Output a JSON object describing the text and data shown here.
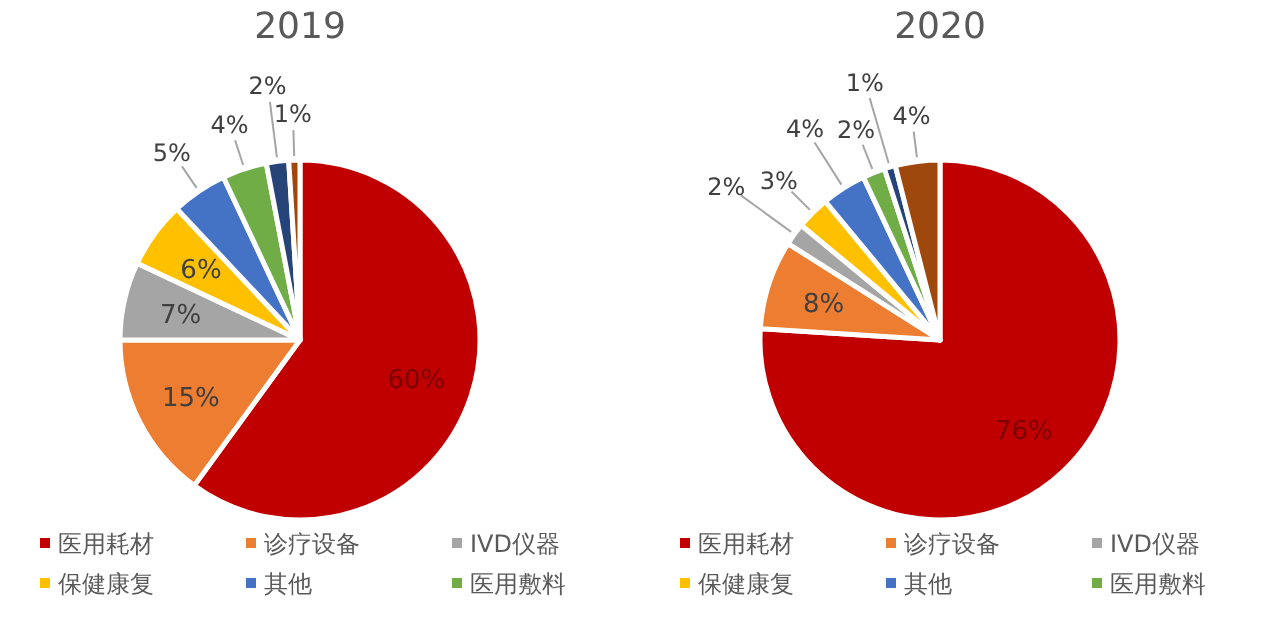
{
  "chart_data": [
    {
      "type": "pie",
      "title": "2019",
      "categories": [
        "医用耗材",
        "诊疗设备",
        "IVD仪器",
        "保健康复",
        "其他",
        "医用敷料",
        null,
        null
      ],
      "values": [
        60,
        15,
        7,
        6,
        5,
        4,
        2,
        1
      ],
      "value_labels": [
        "60%",
        "15%",
        "7%",
        "6%",
        "5%",
        "4%",
        "2%",
        "1%"
      ],
      "colors": [
        "#c00000",
        "#ed7d31",
        "#a5a5a5",
        "#ffc000",
        "#4472c4",
        "#70ad47",
        "#264478",
        "#9e480e"
      ],
      "legend": "bottom"
    },
    {
      "type": "pie",
      "title": "2020",
      "categories": [
        "医用耗材",
        "诊疗设备",
        "IVD仪器",
        "保健康复",
        "其他",
        "医用敷料",
        null,
        null
      ],
      "values": [
        76,
        8,
        2,
        3,
        4,
        2,
        1,
        4
      ],
      "value_labels": [
        "76%",
        "8%",
        "2%",
        "3%",
        "4%",
        "2%",
        "1%",
        "4%"
      ],
      "colors": [
        "#c00000",
        "#ed7d31",
        "#a5a5a5",
        "#ffc000",
        "#4472c4",
        "#70ad47",
        "#264478",
        "#9e480e"
      ],
      "legend": "bottom"
    }
  ]
}
